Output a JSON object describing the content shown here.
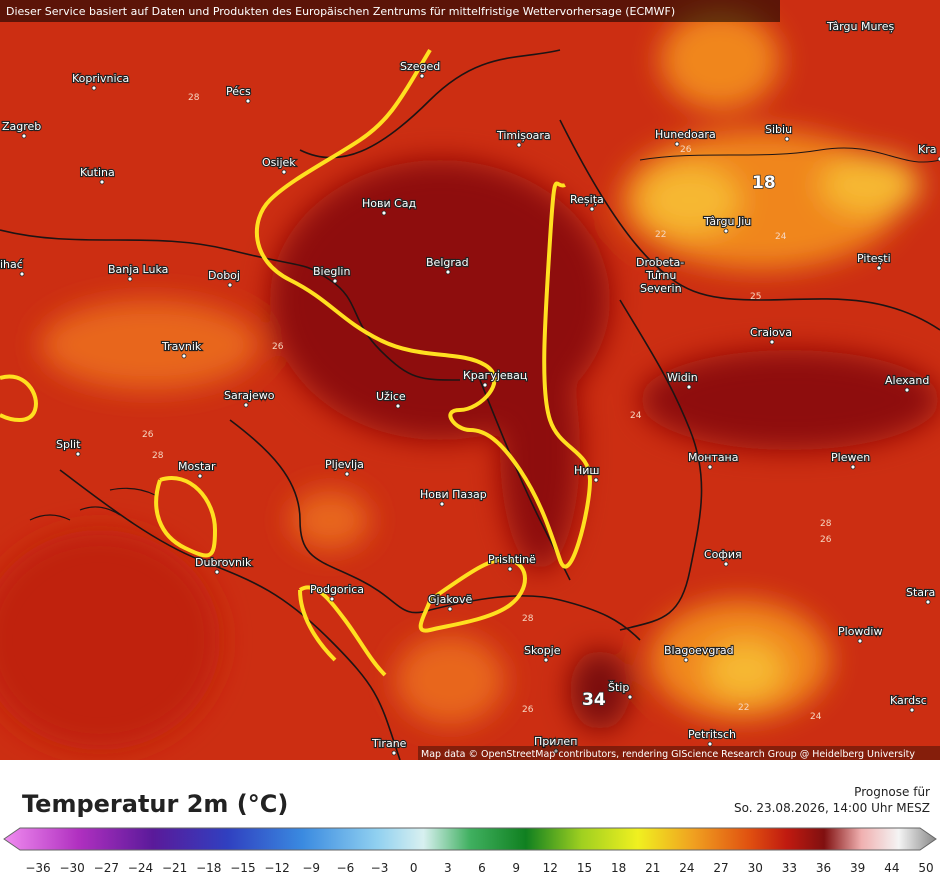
{
  "header": {
    "notice": "Dieser Service basiert auf Daten und Produkten des Europäischen Zentrums für mittelfristige Wettervorhersage (ECMWF)"
  },
  "map": {
    "cities": [
      "Koprivnica",
      "Pécs",
      "Zagreb",
      "Kutina",
      "Osijek",
      "Szeged",
      "Timișoara",
      "Hunedoara",
      "Sibiu",
      "Târgu Mureș",
      "Kra",
      "Reșița",
      "Нови Сад",
      "Belgrad",
      "Bieglin",
      "Banja Luka",
      "Doboj",
      "ihać",
      "Târgu Jiu",
      "Pitești",
      "Drobeta-",
      "Turnu",
      "Severin",
      "Travnik",
      "Craiova",
      "Sarajewo",
      "Užice",
      "Крагујевац",
      "Widin",
      "Alexand",
      "Split",
      "Mostar",
      "Pljevlja",
      "Ниш",
      "Монтана",
      "Plewen",
      "Нови Пазар",
      "Dubrovnik",
      "Prishtinë",
      "София",
      "Podgorica",
      "Gjakovë",
      "Stara",
      "Plowdiw",
      "Skopje",
      "Blagoevgrad",
      "Štip",
      "Kardsc",
      "Petritsch",
      "Tirane",
      "Прилеп"
    ],
    "contour_labels": [
      "28",
      "26",
      "18",
      "22",
      "24",
      "26",
      "25",
      "26",
      "28",
      "24",
      "28",
      "28",
      "26",
      "34",
      "22",
      "24",
      "26"
    ],
    "attribution": "Map data © OpenStreetMap contributors, rendering GIScience Research Group @ Heidelberg University"
  },
  "legend": {
    "title": "Temperatur 2m (°C)",
    "forecast_label": "Prognose für",
    "forecast_time": "So. 23.08.2026, 14:00 Uhr MESZ",
    "ticks": [
      "−36",
      "−30",
      "−27",
      "−24",
      "−21",
      "−18",
      "−15",
      "−12",
      "−9",
      "−6",
      "−3",
      "0",
      "3",
      "6",
      "9",
      "12",
      "15",
      "18",
      "21",
      "24",
      "27",
      "30",
      "33",
      "36",
      "39",
      "44",
      "50"
    ]
  }
}
